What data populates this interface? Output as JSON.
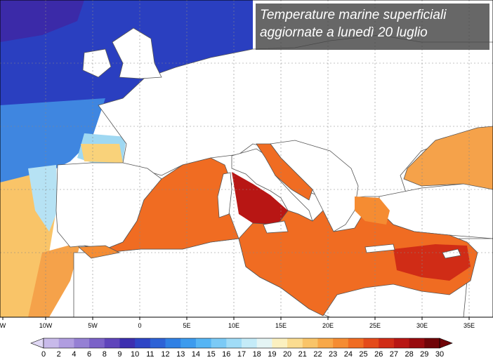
{
  "title": {
    "line1": "Temperature marine superficiali",
    "line2": "aggiornate a lunedì 20 luglio"
  },
  "longitude_labels": [
    "W",
    "10W",
    "5W",
    "0",
    "5E",
    "10E",
    "15E",
    "20E",
    "25E",
    "30E",
    "35E"
  ],
  "colorbar": {
    "labels": [
      "0",
      "2",
      "4",
      "6",
      "8",
      "9",
      "10",
      "11",
      "12",
      "13",
      "14",
      "15",
      "16",
      "17",
      "18",
      "19",
      "20",
      "21",
      "22",
      "23",
      "24",
      "25",
      "26",
      "27",
      "28",
      "29",
      "30"
    ],
    "colors": [
      "#e0d8f4",
      "#c8baea",
      "#b09de0",
      "#9580d4",
      "#7b62c8",
      "#5f45bb",
      "#3c2fb0",
      "#2e45c6",
      "#2d62d6",
      "#3080e4",
      "#3c9bee",
      "#56b5f4",
      "#7bcaf6",
      "#a0dcf7",
      "#c4ebf8",
      "#e4f4f4",
      "#fbf0c0",
      "#fbdc90",
      "#f9c468",
      "#f8a848",
      "#f58c32",
      "#f06c22",
      "#e44a1a",
      "#d02c16",
      "#b81614",
      "#980a0e",
      "#700408"
    ]
  }
}
